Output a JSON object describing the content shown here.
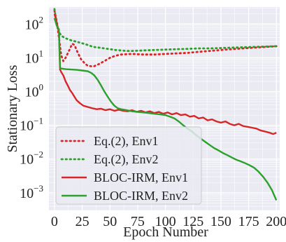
{
  "chart_data": {
    "type": "line",
    "title": "",
    "xlabel": "Epoch Number",
    "ylabel": "Stationary Loss",
    "yscale": "log",
    "xlim": [
      -5,
      203
    ],
    "ylim": [
      0.0003,
      320
    ],
    "x_ticks": [
      0,
      25,
      50,
      75,
      100,
      125,
      150,
      175,
      200
    ],
    "x_tick_labels": [
      "0",
      "25",
      "50",
      "75",
      "100",
      "125",
      "150",
      "175",
      "200"
    ],
    "y_ticks": [
      0.001,
      0.01,
      0.1,
      1,
      10,
      100
    ],
    "y_tick_labels": [
      {
        "base": "10",
        "exp": "−3"
      },
      {
        "base": "10",
        "exp": "−2"
      },
      {
        "base": "10",
        "exp": "−1"
      },
      {
        "base": "10",
        "exp": "0"
      },
      {
        "base": "10",
        "exp": "1"
      },
      {
        "base": "10",
        "exp": "2"
      }
    ],
    "grid": true,
    "background": "#eaeaf2",
    "legend_position": "lower-left",
    "series": [
      {
        "name": "Eq.(2), Env1",
        "style": "dotted",
        "color": "#d62728",
        "points": [
          [
            0,
            250
          ],
          [
            2,
            120
          ],
          [
            4,
            40
          ],
          [
            6,
            12
          ],
          [
            8,
            8
          ],
          [
            10,
            10
          ],
          [
            13,
            16
          ],
          [
            16,
            26
          ],
          [
            18,
            24
          ],
          [
            21,
            14
          ],
          [
            24,
            9
          ],
          [
            27,
            7
          ],
          [
            30,
            5.8
          ],
          [
            35,
            5.5
          ],
          [
            40,
            6.5
          ],
          [
            45,
            8
          ],
          [
            50,
            10
          ],
          [
            55,
            11.5
          ],
          [
            60,
            12.5
          ],
          [
            70,
            13
          ],
          [
            80,
            12.5
          ],
          [
            90,
            12.5
          ],
          [
            100,
            13
          ],
          [
            110,
            13.5
          ],
          [
            120,
            14
          ],
          [
            130,
            15
          ],
          [
            140,
            16
          ],
          [
            150,
            17
          ],
          [
            160,
            18
          ],
          [
            170,
            19
          ],
          [
            180,
            20
          ],
          [
            190,
            21
          ],
          [
            200,
            22
          ]
        ]
      },
      {
        "name": "Eq.(2), Env2",
        "style": "dotted",
        "color": "#2ca02c",
        "points": [
          [
            0,
            280
          ],
          [
            2,
            100
          ],
          [
            4,
            60
          ],
          [
            6,
            45
          ],
          [
            10,
            38
          ],
          [
            15,
            33
          ],
          [
            20,
            30
          ],
          [
            25,
            27
          ],
          [
            30,
            24
          ],
          [
            35,
            21
          ],
          [
            40,
            20
          ],
          [
            45,
            19
          ],
          [
            50,
            18
          ],
          [
            55,
            17
          ],
          [
            60,
            16.5
          ],
          [
            65,
            16
          ],
          [
            70,
            16
          ],
          [
            80,
            16.5
          ],
          [
            90,
            17
          ],
          [
            100,
            17.5
          ],
          [
            110,
            18
          ],
          [
            120,
            18.5
          ],
          [
            130,
            19
          ],
          [
            140,
            19
          ],
          [
            150,
            19.5
          ],
          [
            160,
            20
          ],
          [
            170,
            20.5
          ],
          [
            180,
            21
          ],
          [
            190,
            21.5
          ],
          [
            200,
            22
          ]
        ]
      },
      {
        "name": "BLOC-IRM, Env1",
        "style": "solid",
        "color": "#d62728",
        "points": [
          [
            0,
            200
          ],
          [
            2,
            110
          ],
          [
            3,
            80
          ],
          [
            4,
            60
          ],
          [
            5,
            4.5
          ],
          [
            6,
            3.8
          ],
          [
            8,
            3
          ],
          [
            10,
            2
          ],
          [
            12,
            1.5
          ],
          [
            14,
            1.1
          ],
          [
            16,
            0.9
          ],
          [
            18,
            0.7
          ],
          [
            20,
            0.55
          ],
          [
            23,
            0.45
          ],
          [
            26,
            0.38
          ],
          [
            30,
            0.35
          ],
          [
            34,
            0.32
          ],
          [
            38,
            0.3
          ],
          [
            42,
            0.31
          ],
          [
            46,
            0.28
          ],
          [
            50,
            0.3
          ],
          [
            54,
            0.27
          ],
          [
            58,
            0.29
          ],
          [
            62,
            0.27
          ],
          [
            66,
            0.26
          ],
          [
            70,
            0.28
          ],
          [
            74,
            0.25
          ],
          [
            78,
            0.27
          ],
          [
            82,
            0.24
          ],
          [
            86,
            0.26
          ],
          [
            90,
            0.23
          ],
          [
            94,
            0.25
          ],
          [
            98,
            0.22
          ],
          [
            102,
            0.24
          ],
          [
            106,
            0.21
          ],
          [
            110,
            0.23
          ],
          [
            114,
            0.2
          ],
          [
            118,
            0.21
          ],
          [
            122,
            0.18
          ],
          [
            126,
            0.19
          ],
          [
            130,
            0.16
          ],
          [
            134,
            0.17
          ],
          [
            138,
            0.14
          ],
          [
            142,
            0.15
          ],
          [
            146,
            0.13
          ],
          [
            150,
            0.12
          ],
          [
            154,
            0.13
          ],
          [
            158,
            0.11
          ],
          [
            162,
            0.1
          ],
          [
            166,
            0.11
          ],
          [
            170,
            0.095
          ],
          [
            174,
            0.09
          ],
          [
            178,
            0.085
          ],
          [
            182,
            0.08
          ],
          [
            186,
            0.07
          ],
          [
            190,
            0.065
          ],
          [
            194,
            0.06
          ],
          [
            197,
            0.055
          ],
          [
            200,
            0.06
          ]
        ]
      },
      {
        "name": "BLOC-IRM, Env2",
        "style": "solid",
        "color": "#2ca02c",
        "points": [
          [
            0,
            150
          ],
          [
            2,
            90
          ],
          [
            4,
            70
          ],
          [
            5,
            5
          ],
          [
            6,
            4.8
          ],
          [
            10,
            4.6
          ],
          [
            15,
            4.5
          ],
          [
            20,
            4.4
          ],
          [
            25,
            4.2
          ],
          [
            30,
            4
          ],
          [
            33,
            3.6
          ],
          [
            36,
            3
          ],
          [
            39,
            2.2
          ],
          [
            42,
            1.5
          ],
          [
            45,
            1
          ],
          [
            48,
            0.7
          ],
          [
            51,
            0.5
          ],
          [
            54,
            0.38
          ],
          [
            57,
            0.32
          ],
          [
            60,
            0.3
          ],
          [
            65,
            0.28
          ],
          [
            70,
            0.26
          ],
          [
            75,
            0.25
          ],
          [
            80,
            0.24
          ],
          [
            85,
            0.23
          ],
          [
            90,
            0.22
          ],
          [
            95,
            0.21
          ],
          [
            100,
            0.2
          ],
          [
            104,
            0.18
          ],
          [
            108,
            0.16
          ],
          [
            112,
            0.13
          ],
          [
            116,
            0.1
          ],
          [
            120,
            0.08
          ],
          [
            124,
            0.065
          ],
          [
            128,
            0.05
          ],
          [
            132,
            0.04
          ],
          [
            136,
            0.032
          ],
          [
            140,
            0.026
          ],
          [
            144,
            0.021
          ],
          [
            148,
            0.018
          ],
          [
            152,
            0.015
          ],
          [
            156,
            0.013
          ],
          [
            160,
            0.011
          ],
          [
            164,
            0.0095
          ],
          [
            168,
            0.0085
          ],
          [
            172,
            0.0075
          ],
          [
            176,
            0.0065
          ],
          [
            180,
            0.0055
          ],
          [
            184,
            0.0042
          ],
          [
            188,
            0.003
          ],
          [
            192,
            0.002
          ],
          [
            196,
            0.0012
          ],
          [
            200,
            0.0006
          ]
        ]
      }
    ]
  }
}
